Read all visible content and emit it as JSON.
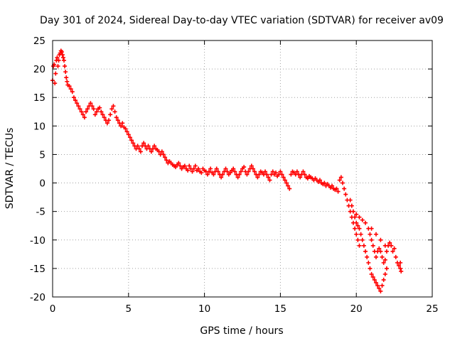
{
  "chart_data": {
    "type": "scatter",
    "title": "Day 301 of 2024, Sidereal Day-to-day VTEC variation (SDTVAR) for receiver av09",
    "xlabel": "GPS time / hours",
    "ylabel": "SDTVAR / TECUs",
    "xlim": [
      0,
      25
    ],
    "ylim": [
      -20,
      25
    ],
    "xticks": [
      0,
      5,
      10,
      15,
      20,
      25
    ],
    "yticks": [
      -20,
      -15,
      -10,
      -5,
      0,
      5,
      10,
      15,
      20,
      25
    ],
    "grid": true,
    "marker": "plus",
    "color": "#ff0000",
    "series": [
      {
        "name": "SDTVAR",
        "points": [
          [
            0.0,
            18.0
          ],
          [
            0.05,
            20.5
          ],
          [
            0.1,
            20.8
          ],
          [
            0.15,
            17.5
          ],
          [
            0.2,
            19.2
          ],
          [
            0.25,
            21.5
          ],
          [
            0.3,
            22.0
          ],
          [
            0.35,
            20.5
          ],
          [
            0.4,
            21.5
          ],
          [
            0.45,
            22.5
          ],
          [
            0.5,
            22.8
          ],
          [
            0.55,
            23.2
          ],
          [
            0.6,
            23.0
          ],
          [
            0.65,
            22.5
          ],
          [
            0.7,
            22.0
          ],
          [
            0.75,
            21.5
          ],
          [
            0.8,
            20.5
          ],
          [
            0.85,
            19.5
          ],
          [
            0.9,
            18.5
          ],
          [
            0.95,
            17.8
          ],
          [
            1.0,
            17.2
          ],
          [
            1.1,
            17.0
          ],
          [
            1.2,
            16.5
          ],
          [
            1.3,
            16.0
          ],
          [
            1.4,
            15.0
          ],
          [
            1.5,
            14.5
          ],
          [
            1.6,
            14.0
          ],
          [
            1.7,
            13.5
          ],
          [
            1.8,
            13.0
          ],
          [
            1.9,
            12.5
          ],
          [
            2.0,
            12.0
          ],
          [
            2.1,
            11.5
          ],
          [
            2.2,
            12.5
          ],
          [
            2.3,
            13.0
          ],
          [
            2.4,
            13.5
          ],
          [
            2.5,
            14.0
          ],
          [
            2.6,
            13.5
          ],
          [
            2.7,
            13.0
          ],
          [
            2.8,
            12.0
          ],
          [
            2.9,
            12.5
          ],
          [
            3.0,
            13.0
          ],
          [
            3.1,
            13.2
          ],
          [
            3.2,
            12.5
          ],
          [
            3.3,
            12.0
          ],
          [
            3.4,
            11.5
          ],
          [
            3.5,
            11.0
          ],
          [
            3.6,
            10.5
          ],
          [
            3.7,
            11.0
          ],
          [
            3.8,
            12.0
          ],
          [
            3.9,
            13.0
          ],
          [
            4.0,
            13.5
          ],
          [
            4.1,
            12.5
          ],
          [
            4.2,
            11.5
          ],
          [
            4.3,
            11.0
          ],
          [
            4.4,
            10.5
          ],
          [
            4.5,
            10.0
          ],
          [
            4.6,
            10.5
          ],
          [
            4.7,
            9.8
          ],
          [
            4.8,
            9.5
          ],
          [
            4.9,
            9.0
          ],
          [
            5.0,
            8.5
          ],
          [
            5.1,
            8.0
          ],
          [
            5.2,
            7.5
          ],
          [
            5.3,
            7.0
          ],
          [
            5.4,
            6.5
          ],
          [
            5.5,
            6.0
          ],
          [
            5.6,
            6.5
          ],
          [
            5.7,
            6.0
          ],
          [
            5.8,
            5.5
          ],
          [
            5.9,
            6.5
          ],
          [
            6.0,
            7.0
          ],
          [
            6.1,
            6.5
          ],
          [
            6.2,
            6.0
          ],
          [
            6.3,
            6.5
          ],
          [
            6.4,
            6.0
          ],
          [
            6.5,
            5.5
          ],
          [
            6.6,
            6.0
          ],
          [
            6.7,
            6.5
          ],
          [
            6.8,
            6.0
          ],
          [
            6.9,
            5.8
          ],
          [
            7.0,
            5.5
          ],
          [
            7.1,
            5.0
          ],
          [
            7.2,
            5.5
          ],
          [
            7.3,
            5.0
          ],
          [
            7.4,
            4.5
          ],
          [
            7.5,
            4.0
          ],
          [
            7.6,
            3.5
          ],
          [
            7.7,
            3.8
          ],
          [
            7.8,
            3.5
          ],
          [
            7.9,
            3.2
          ],
          [
            8.0,
            3.0
          ],
          [
            8.1,
            2.8
          ],
          [
            8.2,
            3.2
          ],
          [
            8.3,
            3.5
          ],
          [
            8.4,
            3.0
          ],
          [
            8.5,
            2.5
          ],
          [
            8.6,
            2.8
          ],
          [
            8.7,
            3.0
          ],
          [
            8.8,
            2.5
          ],
          [
            8.9,
            2.2
          ],
          [
            9.0,
            3.0
          ],
          [
            9.1,
            2.5
          ],
          [
            9.2,
            2.0
          ],
          [
            9.3,
            2.5
          ],
          [
            9.4,
            3.0
          ],
          [
            9.5,
            2.2
          ],
          [
            9.6,
            2.5
          ],
          [
            9.7,
            2.0
          ],
          [
            9.8,
            1.8
          ],
          [
            9.9,
            2.5
          ],
          [
            10.0,
            2.2
          ],
          [
            10.1,
            2.0
          ],
          [
            10.2,
            1.5
          ],
          [
            10.3,
            2.0
          ],
          [
            10.4,
            2.5
          ],
          [
            10.5,
            1.8
          ],
          [
            10.6,
            1.5
          ],
          [
            10.7,
            2.0
          ],
          [
            10.8,
            2.5
          ],
          [
            10.9,
            2.0
          ],
          [
            11.0,
            1.5
          ],
          [
            11.1,
            1.0
          ],
          [
            11.2,
            1.5
          ],
          [
            11.3,
            2.0
          ],
          [
            11.4,
            2.5
          ],
          [
            11.5,
            2.0
          ],
          [
            11.6,
            1.5
          ],
          [
            11.7,
            1.8
          ],
          [
            11.8,
            2.2
          ],
          [
            11.9,
            2.5
          ],
          [
            12.0,
            2.0
          ],
          [
            12.1,
            1.5
          ],
          [
            12.2,
            1.0
          ],
          [
            12.3,
            1.5
          ],
          [
            12.4,
            2.0
          ],
          [
            12.5,
            2.5
          ],
          [
            12.6,
            2.8
          ],
          [
            12.7,
            2.0
          ],
          [
            12.8,
            1.5
          ],
          [
            12.9,
            2.0
          ],
          [
            13.0,
            2.5
          ],
          [
            13.1,
            3.0
          ],
          [
            13.2,
            2.5
          ],
          [
            13.3,
            2.0
          ],
          [
            13.4,
            1.5
          ],
          [
            13.5,
            1.0
          ],
          [
            13.6,
            1.5
          ],
          [
            13.7,
            2.0
          ],
          [
            13.8,
            1.8
          ],
          [
            13.9,
            1.5
          ],
          [
            14.0,
            2.0
          ],
          [
            14.1,
            1.5
          ],
          [
            14.2,
            1.0
          ],
          [
            14.3,
            0.5
          ],
          [
            14.4,
            1.5
          ],
          [
            14.5,
            2.0
          ],
          [
            14.6,
            1.5
          ],
          [
            14.7,
            1.8
          ],
          [
            14.8,
            1.2
          ],
          [
            14.9,
            1.5
          ],
          [
            15.0,
            2.0
          ],
          [
            15.1,
            1.5
          ],
          [
            15.2,
            1.0
          ],
          [
            15.3,
            0.5
          ],
          [
            15.4,
            0.0
          ],
          [
            15.5,
            -0.5
          ],
          [
            15.6,
            -1.0
          ],
          [
            15.7,
            1.5
          ],
          [
            15.8,
            2.0
          ],
          [
            15.9,
            1.8
          ],
          [
            16.0,
            1.5
          ],
          [
            16.1,
            2.0
          ],
          [
            16.2,
            1.5
          ],
          [
            16.3,
            1.0
          ],
          [
            16.4,
            1.5
          ],
          [
            16.5,
            2.0
          ],
          [
            16.6,
            1.5
          ],
          [
            16.7,
            1.0
          ],
          [
            16.8,
            0.8
          ],
          [
            16.9,
            1.2
          ],
          [
            17.0,
            1.0
          ],
          [
            17.1,
            0.8
          ],
          [
            17.2,
            0.5
          ],
          [
            17.3,
            0.8
          ],
          [
            17.4,
            0.5
          ],
          [
            17.5,
            0.2
          ],
          [
            17.6,
            0.5
          ],
          [
            17.7,
            0.0
          ],
          [
            17.8,
            -0.2
          ],
          [
            17.9,
            0.0
          ],
          [
            18.0,
            -0.5
          ],
          [
            18.1,
            -0.2
          ],
          [
            18.2,
            -0.5
          ],
          [
            18.3,
            -0.8
          ],
          [
            18.4,
            -0.5
          ],
          [
            18.5,
            -1.0
          ],
          [
            18.6,
            -1.2
          ],
          [
            18.7,
            -1.0
          ],
          [
            18.8,
            -1.5
          ],
          [
            18.9,
            0.5
          ],
          [
            19.0,
            1.0
          ],
          [
            19.1,
            0.0
          ],
          [
            19.2,
            -1.0
          ],
          [
            19.3,
            -2.0
          ],
          [
            19.4,
            -3.0
          ],
          [
            19.5,
            -4.0
          ],
          [
            19.6,
            -5.0
          ],
          [
            19.7,
            -6.0
          ],
          [
            19.8,
            -7.0
          ],
          [
            19.9,
            -8.0
          ],
          [
            20.0,
            -9.0
          ],
          [
            20.1,
            -10.0
          ],
          [
            20.2,
            -11.0
          ],
          [
            19.6,
            -3.0
          ],
          [
            19.7,
            -4.0
          ],
          [
            19.8,
            -5.0
          ],
          [
            19.9,
            -6.0
          ],
          [
            20.0,
            -7.0
          ],
          [
            20.1,
            -7.5
          ],
          [
            20.2,
            -8.0
          ],
          [
            20.3,
            -9.0
          ],
          [
            20.4,
            -10.0
          ],
          [
            20.5,
            -11.0
          ],
          [
            20.6,
            -12.0
          ],
          [
            20.7,
            -13.0
          ],
          [
            20.8,
            -14.0
          ],
          [
            20.9,
            -15.0
          ],
          [
            21.0,
            -16.0
          ],
          [
            21.1,
            -16.5
          ],
          [
            21.2,
            -17.0
          ],
          [
            21.3,
            -17.5
          ],
          [
            21.4,
            -18.0
          ],
          [
            21.5,
            -18.5
          ],
          [
            21.6,
            -19.0
          ],
          [
            21.7,
            -18.0
          ],
          [
            21.8,
            -17.0
          ],
          [
            21.9,
            -16.0
          ],
          [
            22.0,
            -15.0
          ],
          [
            20.0,
            -5.5
          ],
          [
            20.2,
            -6.0
          ],
          [
            20.4,
            -6.5
          ],
          [
            20.6,
            -7.0
          ],
          [
            20.8,
            -8.0
          ],
          [
            20.9,
            -9.0
          ],
          [
            21.0,
            -10.0
          ],
          [
            21.1,
            -11.0
          ],
          [
            21.2,
            -12.0
          ],
          [
            21.3,
            -13.0
          ],
          [
            21.4,
            -12.0
          ],
          [
            21.5,
            -11.5
          ],
          [
            21.6,
            -12.0
          ],
          [
            21.7,
            -13.0
          ],
          [
            21.8,
            -14.0
          ],
          [
            21.9,
            -13.5
          ],
          [
            22.0,
            -12.0
          ],
          [
            22.1,
            -11.0
          ],
          [
            22.2,
            -10.5
          ],
          [
            22.3,
            -11.0
          ],
          [
            22.4,
            -12.0
          ],
          [
            22.5,
            -11.5
          ],
          [
            22.6,
            -13.0
          ],
          [
            22.7,
            -14.0
          ],
          [
            22.8,
            -14.5
          ],
          [
            22.9,
            -15.0
          ],
          [
            22.95,
            -15.5
          ],
          [
            22.9,
            -14.0
          ],
          [
            21.0,
            -8.0
          ],
          [
            21.3,
            -9.0
          ],
          [
            21.6,
            -10.0
          ],
          [
            21.9,
            -11.0
          ]
        ]
      }
    ]
  }
}
